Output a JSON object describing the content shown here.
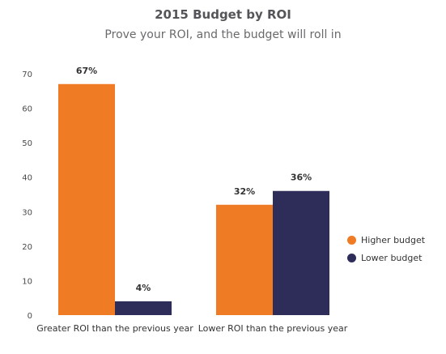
{
  "chart_data": {
    "type": "bar",
    "title": "2015 Budget by ROI",
    "subtitle": "Prove your ROI, and the budget will roll in",
    "categories": [
      "Greater ROI than the previous year",
      "Lower ROI than the previous year"
    ],
    "series": [
      {
        "name": "Higher budget",
        "color": "#f07b25",
        "values": [
          67,
          32
        ],
        "labels": [
          "67%",
          "32%"
        ]
      },
      {
        "name": "Lower budget",
        "color": "#2e2c59",
        "values": [
          4,
          36
        ],
        "labels": [
          "4%",
          "36%"
        ]
      }
    ],
    "yticks": [
      "0",
      "10",
      "20",
      "30",
      "40",
      "50",
      "60",
      "70"
    ],
    "ylim": [
      0,
      70
    ],
    "grid": false,
    "legend_position": "right"
  }
}
